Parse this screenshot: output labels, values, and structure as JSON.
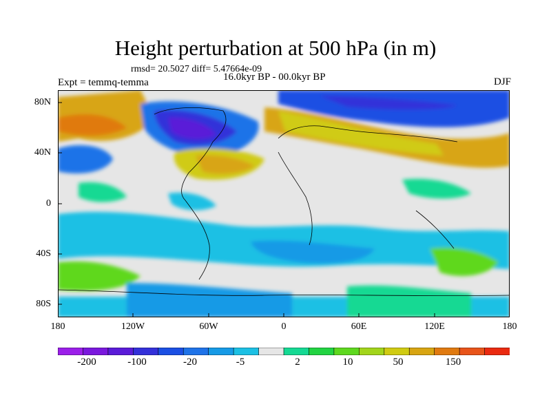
{
  "header": {
    "title": "Height perturbation at 500 hPa (in m)",
    "rmsd_line": "rmsd= 20.5027 diff= 5.47664e-09",
    "period": "16.0kyr BP - 00.0kyr BP",
    "experiment": "Expt = temmq-temma",
    "season": "DJF"
  },
  "axes": {
    "lat_ticks": [
      "80N",
      "40N",
      "0",
      "40S",
      "80S"
    ],
    "lon_ticks": [
      "180",
      "120W",
      "60W",
      "0",
      "60E",
      "120E",
      "180"
    ]
  },
  "colorbar": {
    "colors": [
      "#9b1fe9",
      "#7a18dd",
      "#5a1bd8",
      "#3330d9",
      "#1b4fe3",
      "#1f73e8",
      "#169ae6",
      "#1cc0e4",
      "#e6e6e6",
      "#15d993",
      "#22d442",
      "#5ed81f",
      "#a2d51b",
      "#d0cb12",
      "#d8a512",
      "#e07a10",
      "#e8541a",
      "#ea2a10"
    ],
    "labels": [
      "-200",
      "-100",
      "-20",
      "-5",
      "2",
      "10",
      "50",
      "150"
    ]
  }
}
